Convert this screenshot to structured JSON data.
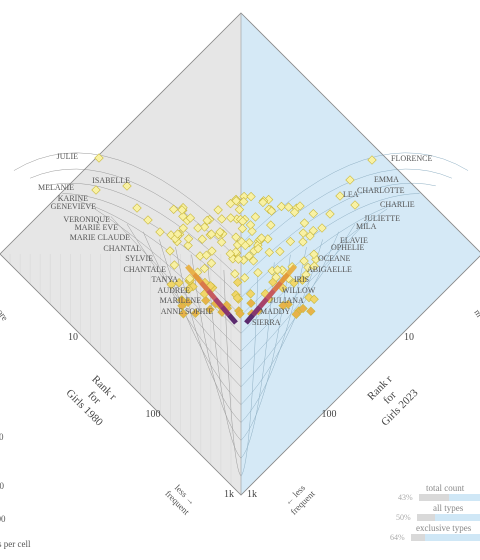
{
  "chart_data": {
    "type": "scatter",
    "subtype": "rank-turbulence-divergence diamond",
    "left_system": {
      "axis_title": [
        "Rank r",
        "for",
        "Girls 1980"
      ],
      "color": "#e5e5e5"
    },
    "right_system": {
      "axis_title": [
        "Rank r",
        "for",
        "Girls 2023"
      ],
      "color": "#d4e8f6"
    },
    "ticks": [
      "10",
      "100",
      "1k"
    ],
    "tick_values": [
      10,
      100,
      1000
    ],
    "hint_left": [
      "less →",
      "frequent"
    ],
    "hint_right": [
      "← less",
      "frequent"
    ],
    "left_names": [
      "JULIE",
      "ISABELLE",
      "MELANIE",
      "KARINE",
      "GENEVIEVE",
      "VERONIQUE",
      "MARIE EVE",
      "MARIE CLAUDE",
      "CHANTAL",
      "SYLVIE",
      "CHANTALE",
      "TANYA",
      "AUDREE",
      "MARILENE",
      "ANNE SOPHIE"
    ],
    "right_names": [
      "FLORENCE",
      "EMMA",
      "CHARLOTTE",
      "LEA",
      "CHARLIE",
      "JULIETTE",
      "MILA",
      "ELAVIE",
      "OPHELIE",
      "OCEANE",
      "ABIGAELLE",
      "IRIS",
      "WILLOW",
      "JULIANA",
      "MADDY",
      "SIERRA"
    ],
    "legend": {
      "rows": [
        {
          "pct": "43%",
          "label": "total count"
        },
        {
          "pct": "50%",
          "label": "all types"
        },
        {
          "pct": "64%",
          "label": "exclusive types"
        }
      ]
    },
    "edge_text": {
      "top_left_partial": "ore",
      "right_partial": "m",
      "left_partial": "s per cell",
      "left_numbers": [
        "0",
        "00",
        "000"
      ]
    },
    "colors": {
      "point_fill": "#f6ef9a",
      "point_stroke": "#c9b83a",
      "deep": "#5b2a6e",
      "mid": "#c0556a",
      "warm": "#e49b3a"
    }
  }
}
